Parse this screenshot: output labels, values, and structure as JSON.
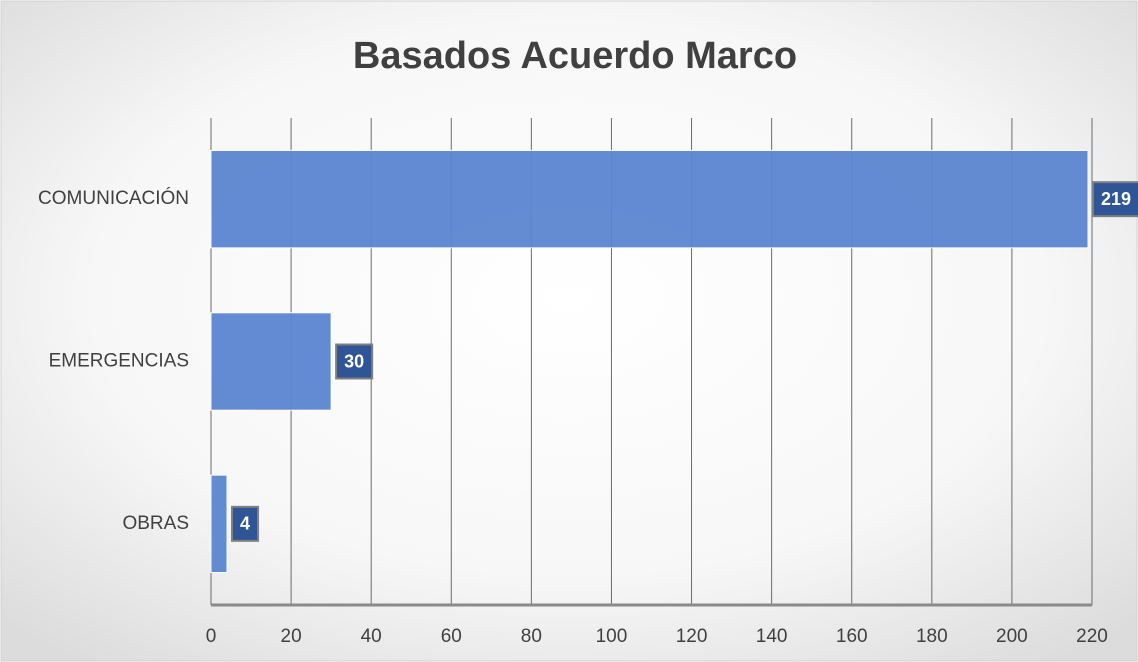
{
  "chart_data": {
    "type": "bar",
    "orientation": "horizontal",
    "title": "Basados Acuerdo Marco",
    "categories": [
      "COMUNICACIÓN",
      "EMERGENCIAS",
      "OBRAS"
    ],
    "values": [
      219,
      30,
      4
    ],
    "color": "#5b86d1",
    "label_color": "#2f5597",
    "xlim": [
      0,
      220
    ],
    "xticks": [
      0,
      20,
      40,
      60,
      80,
      100,
      120,
      140,
      160,
      180,
      200,
      220
    ],
    "grid": true
  }
}
